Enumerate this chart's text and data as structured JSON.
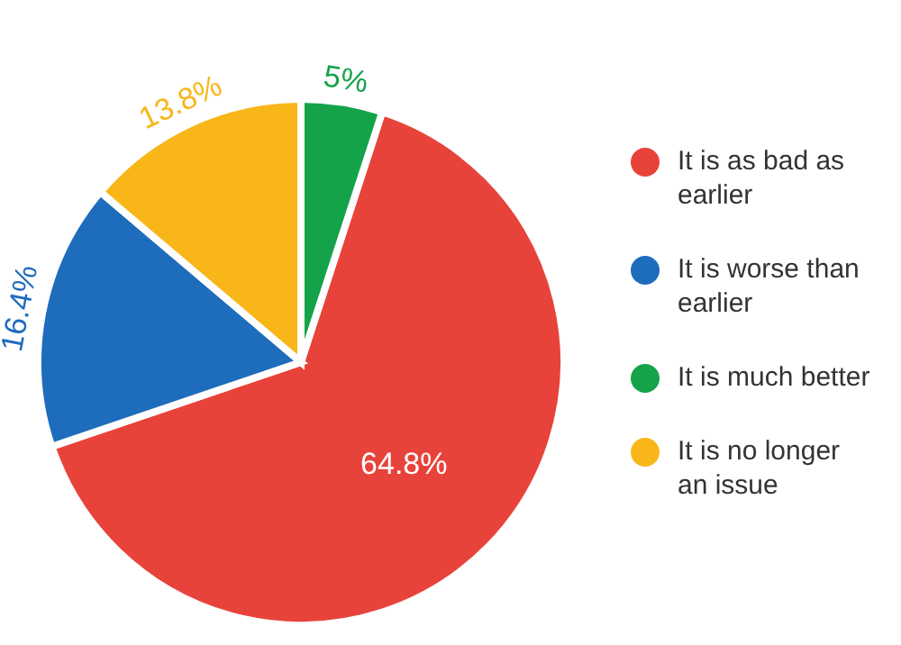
{
  "chart_data": {
    "type": "pie",
    "categories": [
      "It is as bad as earlier",
      "It is worse than earlier",
      "It is much better",
      "It is no longer an issue"
    ],
    "values": [
      64.8,
      16.4,
      5,
      13.8
    ],
    "colors": [
      "#e8433a",
      "#1e6cbc",
      "#15a34a",
      "#f8b619"
    ],
    "value_labels": [
      "64.8%",
      "16.4%",
      "5%",
      "13.8%"
    ],
    "legend": "right"
  }
}
